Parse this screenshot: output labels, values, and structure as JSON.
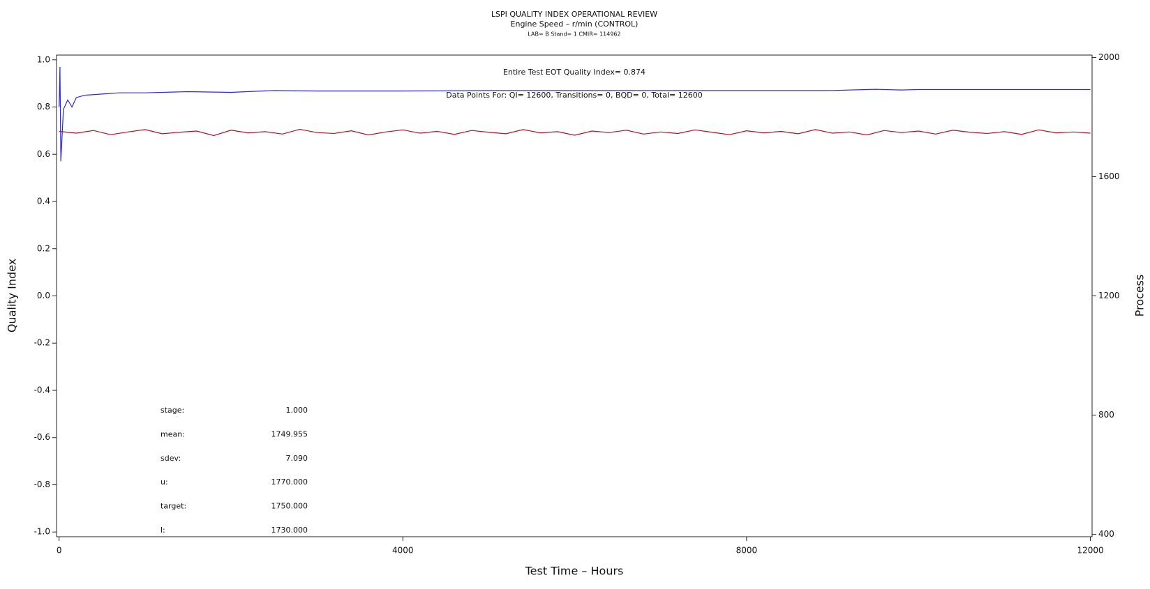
{
  "chart_data": {
    "type": "line",
    "title": "LSPI QUALITY INDEX OPERATIONAL REVIEW",
    "subtitle": "Engine Speed – r/min (CONTROL)",
    "subtitle2": "LAB= B Stand= 1 CMIR= 114962",
    "x_label": "Test Time – Hours",
    "y_label": "Quality Index",
    "y2_label": "Process",
    "annotations": [
      "Entire Test EOT Quality Index=   0.874",
      "Data Points For: QI= 12600, Transitions=     0, BQD=     0, Total= 12600"
    ],
    "stats": [
      {
        "label": "stage:",
        "value": "1.000"
      },
      {
        "label": "mean:",
        "value": "1749.955"
      },
      {
        "label": "sdev:",
        "value": "7.090"
      },
      {
        "label": "u:",
        "value": "1770.000"
      },
      {
        "label": "target:",
        "value": "1750.000"
      },
      {
        "label": "l:",
        "value": "1730.000"
      }
    ],
    "xlim": [
      -30,
      12020
    ],
    "xticks": [
      0,
      4000,
      8000,
      12000
    ],
    "ylim": [
      -1.02,
      1.02
    ],
    "yticks": [
      {
        "value": 1.0,
        "label": "1.0"
      },
      {
        "value": 0.8,
        "label": "0.8"
      },
      {
        "value": 0.6,
        "label": "0.6"
      },
      {
        "value": 0.4,
        "label": "0.4"
      },
      {
        "value": 0.2,
        "label": "0.2"
      },
      {
        "value": 0.0,
        "label": "0.0"
      },
      {
        "value": -0.2,
        "label": "-0.2"
      },
      {
        "value": -0.4,
        "label": "-0.4"
      },
      {
        "value": -0.6,
        "label": "-0.6"
      },
      {
        "value": -0.8,
        "label": "-0.8"
      },
      {
        "value": -1.0,
        "label": "-1.0"
      }
    ],
    "y2lim": [
      392,
      2008
    ],
    "y2ticks": [
      400,
      800,
      1200,
      1600,
      2000
    ],
    "series": [
      {
        "color": "#2a2ad0",
        "x": [
          0,
          10,
          20,
          50,
          100,
          150,
          200,
          300,
          500,
          700,
          1000,
          1500,
          2000,
          2500,
          3000,
          4000,
          5000,
          6000,
          7000,
          8000,
          9000,
          9500,
          9800,
          10000,
          11000,
          12000
        ],
        "values": [
          0.8,
          0.97,
          0.57,
          0.79,
          0.83,
          0.8,
          0.84,
          0.85,
          0.855,
          0.86,
          0.86,
          0.865,
          0.862,
          0.87,
          0.868,
          0.868,
          0.87,
          0.87,
          0.87,
          0.87,
          0.87,
          0.875,
          0.872,
          0.874,
          0.874,
          0.874
        ]
      },
      {
        "color": "#b0102a",
        "axis": "y2",
        "x": [
          0,
          200,
          400,
          600,
          800,
          1000,
          1200,
          1400,
          1600,
          1800,
          2000,
          2200,
          2400,
          2600,
          2800,
          3000,
          3200,
          3400,
          3600,
          3800,
          4000,
          4200,
          4400,
          4600,
          4800,
          5000,
          5200,
          5400,
          5600,
          5800,
          6000,
          6200,
          6400,
          6600,
          6800,
          7000,
          7200,
          7400,
          7600,
          7800,
          8000,
          8200,
          8400,
          8600,
          8800,
          9000,
          9200,
          9400,
          9600,
          9800,
          10000,
          10200,
          10400,
          10600,
          10800,
          11000,
          11200,
          11400,
          11600,
          11800,
          12000
        ],
        "values": [
          1752,
          1746,
          1755,
          1741,
          1750,
          1758,
          1744,
          1749,
          1753,
          1738,
          1756,
          1747,
          1751,
          1743,
          1759,
          1748,
          1745,
          1754,
          1740,
          1750,
          1757,
          1746,
          1752,
          1742,
          1755,
          1749,
          1744,
          1758,
          1747,
          1751,
          1739,
          1753,
          1748,
          1756,
          1743,
          1750,
          1745,
          1757,
          1749,
          1741,
          1754,
          1747,
          1752,
          1744,
          1758,
          1746,
          1750,
          1740,
          1755,
          1748,
          1753,
          1743,
          1756,
          1749,
          1745,
          1751,
          1742,
          1757,
          1747,
          1750,
          1746
        ]
      }
    ]
  }
}
